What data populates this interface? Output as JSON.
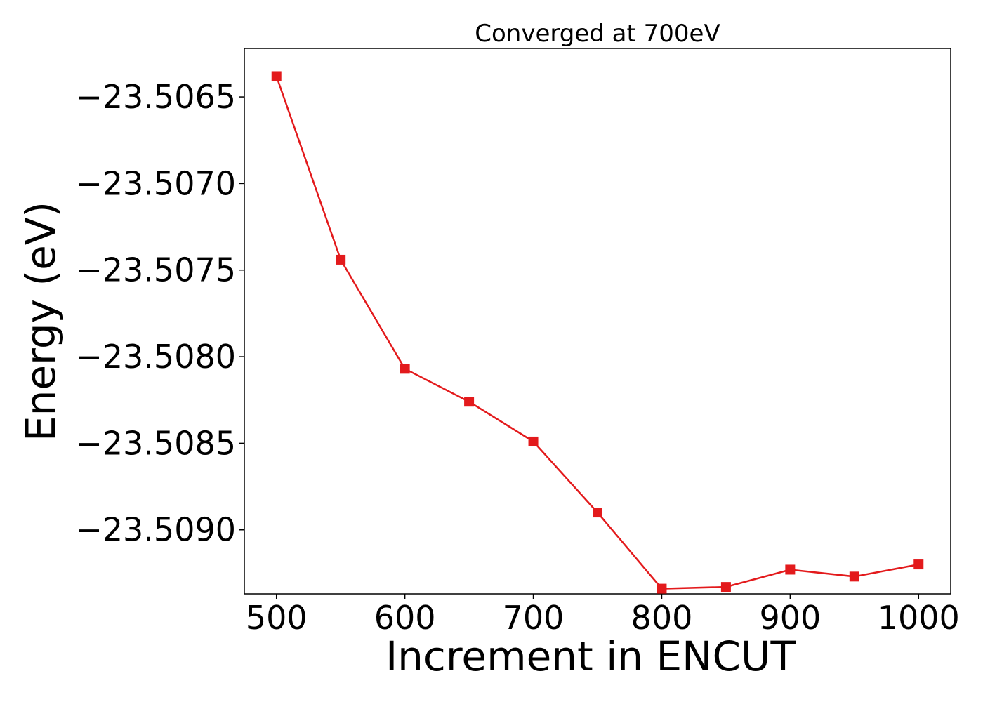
{
  "chart_data": {
    "type": "line",
    "title": "Converged at 700eV",
    "xlabel": "Increment in ENCUT",
    "ylabel": "Energy (eV)",
    "xlim": [
      475,
      1025
    ],
    "ylim": [
      -23.50937,
      -23.50622
    ],
    "xticks": [
      500,
      600,
      700,
      800,
      900,
      1000
    ],
    "xtick_labels": [
      "500",
      "600",
      "700",
      "800",
      "900",
      "1000"
    ],
    "yticks": [
      -23.5065,
      -23.507,
      -23.5075,
      -23.508,
      -23.5085,
      -23.509
    ],
    "ytick_labels": [
      "−23.5065",
      "−23.5070",
      "−23.5075",
      "−23.5080",
      "−23.5085",
      "−23.5090"
    ],
    "grid": false,
    "series": [
      {
        "color": "#e31a1c",
        "marker": "square",
        "x": [
          500,
          550,
          600,
          650,
          700,
          750,
          800,
          850,
          900,
          950,
          1000
        ],
        "y": [
          -23.50638,
          -23.50744,
          -23.50807,
          -23.50826,
          -23.50849,
          -23.5089,
          -23.50934,
          -23.50933,
          -23.50923,
          -23.50927,
          -23.5092
        ]
      }
    ]
  }
}
